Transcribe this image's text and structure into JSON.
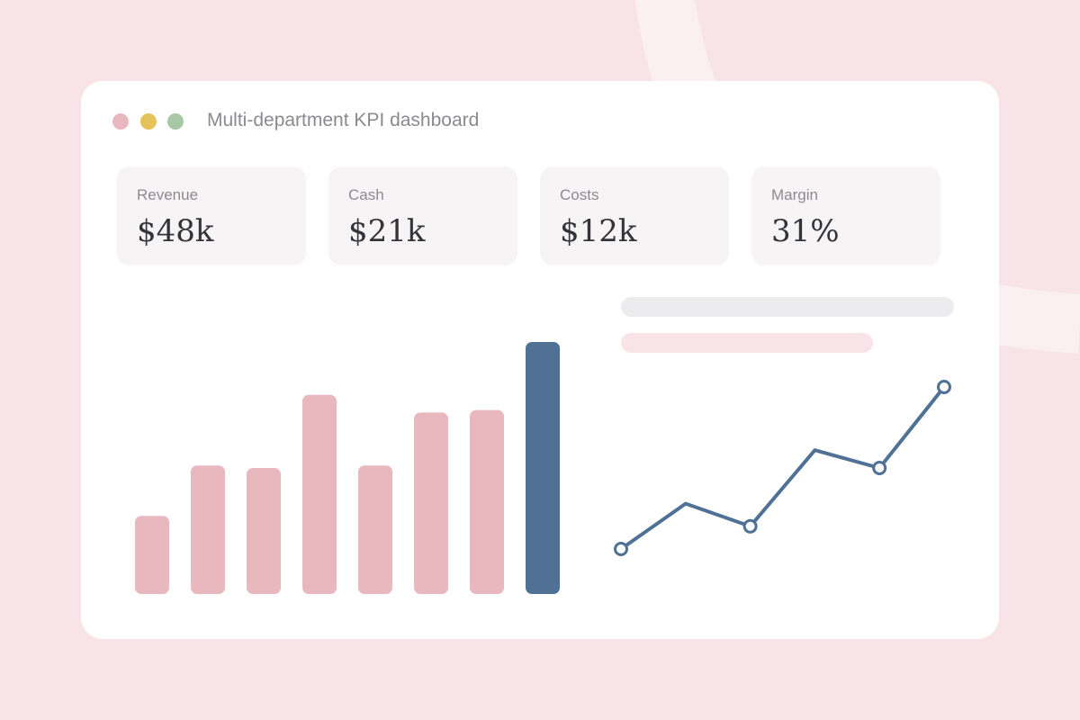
{
  "colors": {
    "background": "#f8e4e8",
    "window": "#ffffff",
    "card": "#f6f4f5",
    "bar": "#e8b8be",
    "bar_highlight": "#507196",
    "line": "#507196",
    "skeleton_gray": "#ececee",
    "skeleton_pink": "#f8e4e8",
    "dot_red": "#e8b8be",
    "dot_yellow": "#e6c25a",
    "dot_green": "#a7c7a5"
  },
  "window": {
    "title": "Multi-department KPI dashboard",
    "controls": [
      "close-dot",
      "minimize-dot",
      "maximize-dot"
    ]
  },
  "kpis": [
    {
      "label": "Revenue",
      "value": "$48k"
    },
    {
      "label": "Cash",
      "value": "$21k"
    },
    {
      "label": "Costs",
      "value": "$12k"
    },
    {
      "label": "Margin",
      "value": "31%"
    }
  ],
  "chart_data": [
    {
      "type": "bar",
      "categories": [
        "",
        "",
        "",
        "",
        "",
        "",
        "",
        ""
      ],
      "values": [
        31,
        51,
        50,
        79,
        51,
        72,
        73,
        100
      ],
      "highlight_index": 7,
      "ylim": [
        0,
        100
      ],
      "grid": false
    },
    {
      "type": "line",
      "x": [
        1,
        2,
        3,
        4,
        5,
        6
      ],
      "values": [
        0,
        28,
        14,
        61,
        50,
        100
      ],
      "marker_indices": [
        0,
        2,
        4,
        5
      ],
      "ylim": [
        0,
        100
      ],
      "grid": false
    }
  ]
}
